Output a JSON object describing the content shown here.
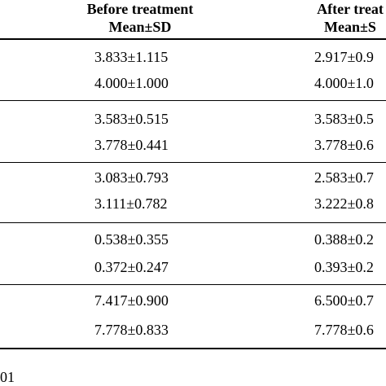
{
  "header": {
    "before_line1": "Before treatment",
    "before_line2": "Mean±SD",
    "after_line1": "After treat",
    "after_line2": "Mean±S"
  },
  "rows": [
    {
      "before": "3.833±1.115",
      "after": "2.917±0.9"
    },
    {
      "before": "4.000±1.000",
      "after": "4.000±1.0"
    },
    {
      "before": "3.583±0.515",
      "after": "3.583±0.5"
    },
    {
      "before": "3.778±0.441",
      "after": "3.778±0.6"
    },
    {
      "before": "3.083±0.793",
      "after": "2.583±0.7"
    },
    {
      "before": "3.111±0.782",
      "after": "3.222±0.8"
    },
    {
      "before": "0.538±0.355",
      "after": "0.388±0.2"
    },
    {
      "before": "0.372±0.247",
      "after": "0.393±0.2"
    },
    {
      "before": "7.417±0.900",
      "after": "6.500±0.7"
    },
    {
      "before": "7.778±0.833",
      "after": "7.778±0.6"
    }
  ],
  "footnote": "01"
}
